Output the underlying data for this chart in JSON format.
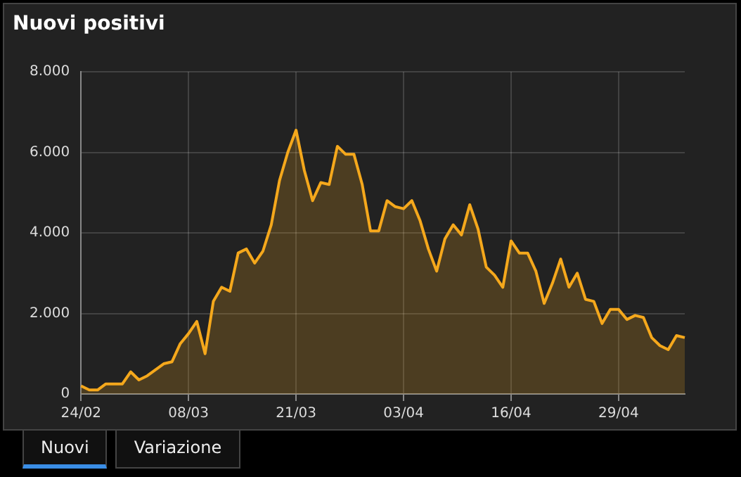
{
  "chart_data": {
    "type": "area",
    "title": "Nuovi positivi",
    "categories": [
      "24/02",
      null,
      null,
      null,
      null,
      null,
      null,
      null,
      null,
      null,
      null,
      null,
      null,
      "08/03",
      null,
      null,
      null,
      null,
      null,
      null,
      null,
      null,
      null,
      null,
      null,
      null,
      "21/03",
      null,
      null,
      null,
      null,
      null,
      null,
      null,
      null,
      null,
      null,
      null,
      null,
      "03/04",
      null,
      null,
      null,
      null,
      null,
      null,
      null,
      null,
      null,
      null,
      null,
      null,
      "16/04",
      null,
      null,
      null,
      null,
      null,
      null,
      null,
      null,
      null,
      null,
      null,
      null,
      "29/04",
      null,
      null,
      null,
      null,
      null,
      null,
      null,
      null
    ],
    "series": [
      {
        "color": "#f5a81c",
        "values": [
          200,
          100,
          100,
          250,
          250,
          250,
          550,
          350,
          450,
          600,
          750,
          800,
          1250,
          1500,
          1800,
          1000,
          2300,
          2650,
          2550,
          3500,
          3600,
          3250,
          3550,
          4200,
          5300,
          6000,
          6550,
          5550,
          4800,
          5250,
          5200,
          6150,
          5950,
          5950,
          5200,
          4050,
          4050,
          4800,
          4650,
          4600,
          4800,
          4300,
          3600,
          3050,
          3850,
          4200,
          3950,
          4700,
          4100,
          3150,
          2950,
          2650,
          3800,
          3500,
          3500,
          3050,
          2250,
          2750,
          3350,
          2650,
          3000,
          2350,
          2300,
          1750,
          2100,
          2100,
          1850,
          1950,
          1900,
          1400,
          1200,
          1100,
          1450,
          1400
        ]
      }
    ],
    "ylim": [
      0,
      8000
    ],
    "yticks": [
      0,
      {
        "value": 2000,
        "label": "2.000"
      },
      {
        "value": 4000,
        "label": "4.000"
      },
      {
        "value": 6000,
        "label": "6.000"
      },
      {
        "value": 8000,
        "label": "8.000"
      }
    ],
    "grid": true,
    "legend": false,
    "annotations": [
      "Nuovi",
      "Variazione"
    ]
  }
}
